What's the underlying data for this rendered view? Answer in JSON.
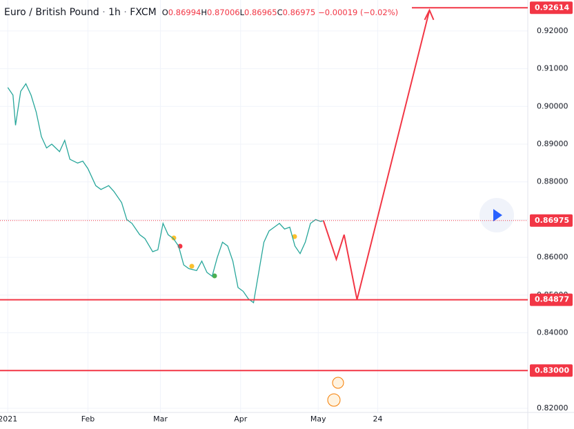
{
  "header": {
    "symbol": "Euro / British Pound",
    "interval": "1h",
    "source": "FXCM",
    "ohlc_labels": [
      "O",
      "H",
      "L",
      "C"
    ],
    "ohlc": [
      0.86994,
      0.87006,
      0.86965,
      0.86975
    ],
    "change": "−0.00019 (−0.02%)"
  },
  "chart_data": {
    "type": "line",
    "xlim": [
      -3,
      201
    ],
    "xticks": [
      {
        "value": 0,
        "label": "2021"
      },
      {
        "value": 31,
        "label": "Feb"
      },
      {
        "value": 59,
        "label": "Mar"
      },
      {
        "value": 90,
        "label": "Apr"
      },
      {
        "value": 120,
        "label": "May"
      },
      {
        "value": 143,
        "label": "24"
      }
    ],
    "ylim": [
      0.8189,
      0.9282
    ],
    "yticks": [
      {
        "value": 0.82,
        "label": "0.82000"
      },
      {
        "value": 0.83,
        "label": "0.83000"
      },
      {
        "value": 0.84,
        "label": "0.84000"
      },
      {
        "value": 0.85,
        "label": "0.85000"
      },
      {
        "value": 0.86,
        "label": "0.86000"
      },
      {
        "value": 0.87,
        "label": "0.87000"
      },
      {
        "value": 0.88,
        "label": "0.88000"
      },
      {
        "value": 0.89,
        "label": "0.89000"
      },
      {
        "value": 0.9,
        "label": "0.90000"
      },
      {
        "value": 0.91,
        "label": "0.91000"
      },
      {
        "value": 0.92,
        "label": "0.92000"
      }
    ],
    "grid": true,
    "series": [
      {
        "color": "#26a69a",
        "x": [
          0,
          2,
          3,
          5,
          7,
          9,
          11,
          13,
          15,
          17,
          20,
          22,
          24,
          27,
          29,
          31,
          34,
          36,
          39,
          41,
          44,
          46,
          48,
          51,
          53,
          56,
          58,
          60,
          62,
          64,
          66,
          68,
          70,
          73,
          75,
          77,
          79,
          81,
          83,
          85,
          87,
          89,
          91,
          93,
          95,
          97,
          99,
          101,
          103,
          105,
          107,
          109,
          111,
          113,
          115,
          117,
          119,
          121,
          122
        ],
        "values": [
          0.905,
          0.903,
          0.895,
          0.904,
          0.906,
          0.903,
          0.8985,
          0.892,
          0.889,
          0.89,
          0.888,
          0.891,
          0.886,
          0.885,
          0.8855,
          0.8835,
          0.879,
          0.878,
          0.879,
          0.8775,
          0.8745,
          0.87,
          0.869,
          0.866,
          0.865,
          0.8615,
          0.862,
          0.869,
          0.866,
          0.865,
          0.863,
          0.858,
          0.857,
          0.8565,
          0.859,
          0.856,
          0.855,
          0.86,
          0.864,
          0.863,
          0.859,
          0.852,
          0.851,
          0.849,
          0.848,
          0.856,
          0.864,
          0.867,
          0.868,
          0.869,
          0.8675,
          0.868,
          0.863,
          0.861,
          0.864,
          0.869,
          0.87,
          0.8695,
          0.86975
        ]
      },
      {
        "color": "#f23645",
        "x": [
          122,
          127,
          130,
          135,
          163
        ],
        "values": [
          0.86975,
          0.8595,
          0.866,
          0.8488,
          0.9255
        ]
      }
    ],
    "levels": [
      0.92614,
      0.86975,
      0.84877,
      0.83
    ],
    "level_labels": [
      "0.92614",
      "0.86975",
      "0.84877",
      "0.83000"
    ]
  }
}
